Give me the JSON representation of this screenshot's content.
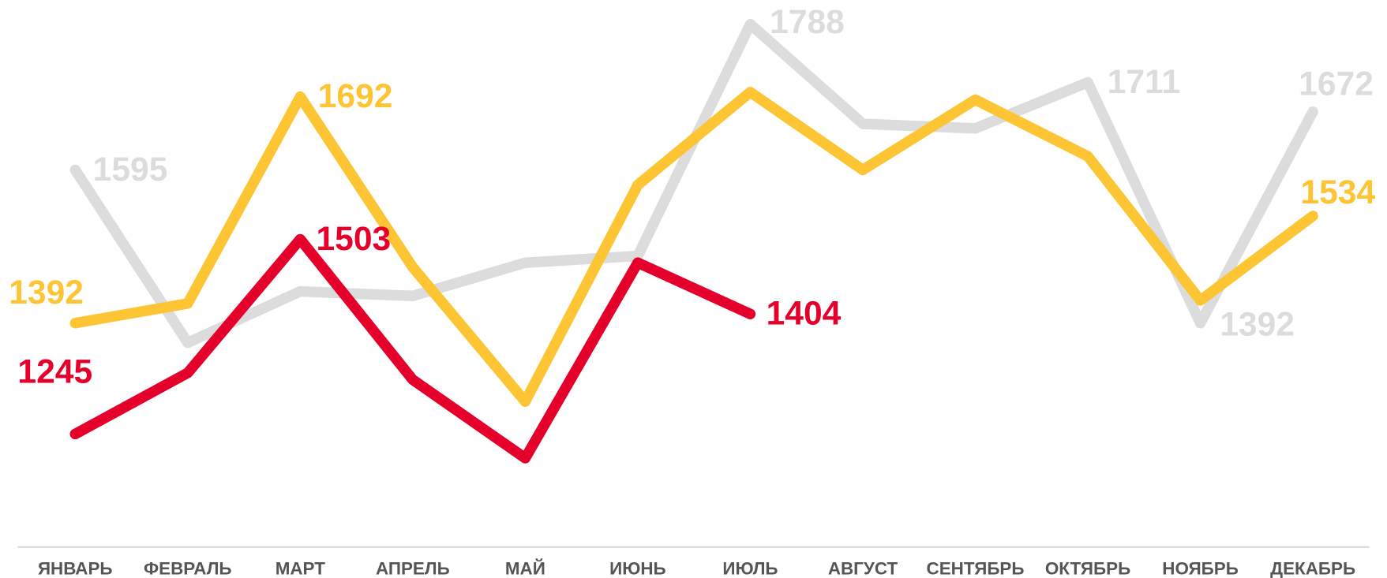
{
  "chart_data": {
    "type": "line",
    "categories": [
      "ЯНВАРЬ",
      "ФЕВРАЛЬ",
      "МАРТ",
      "АПРЕЛЬ",
      "МАЙ",
      "ИЮНЬ",
      "ИЮЛЬ",
      "АВГУСТ",
      "СЕНТЯБРЬ",
      "ОКТЯБРЬ",
      "НОЯБРЬ",
      "ДЕКАБРЬ"
    ],
    "series": [
      {
        "color": "#dcdcdc",
        "values": [
          1595,
          1366,
          1434,
          1428,
          1472,
          1481,
          1788,
          1656,
          1650,
          1711,
          1392,
          1672
        ],
        "labeled": [
          0,
          6,
          9,
          10,
          11
        ]
      },
      {
        "color": "#fdc533",
        "values": [
          1392,
          1418,
          1692,
          1466,
          1288,
          1575,
          1698,
          1595,
          1688,
          1613,
          1422,
          1534
        ],
        "labeled": [
          0,
          2,
          11
        ]
      },
      {
        "color": "#e4002b",
        "values": [
          1245,
          1326,
          1503,
          1317,
          1213,
          1472,
          1404,
          null,
          null,
          null,
          null,
          null
        ],
        "labeled": [
          0,
          2,
          6
        ]
      }
    ],
    "ylim": [
      1100,
      1820
    ],
    "grid": false
  }
}
